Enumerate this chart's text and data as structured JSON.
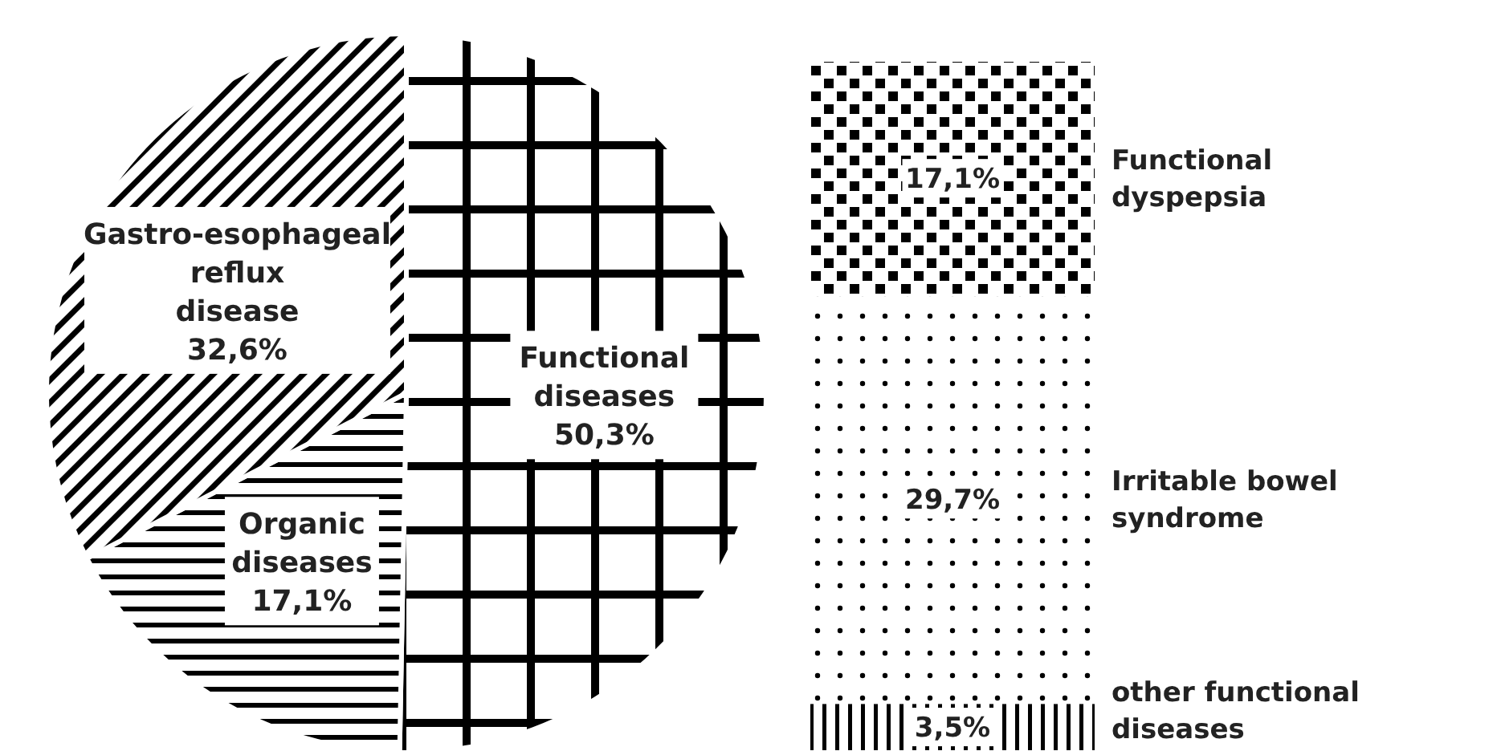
{
  "chart_data": [
    {
      "type": "pie",
      "categories": [
        "Functional diseases",
        "Organic diseases",
        "Gastro-esophageal reflux disease"
      ],
      "values": [
        50.3,
        17.1,
        32.6
      ],
      "value_labels": [
        "50,3%",
        "17,1%",
        "32,6%"
      ],
      "colors": [
        "#ffffff",
        "#ffffff",
        "#ffffff"
      ]
    },
    {
      "type": "bar",
      "stacked": true,
      "categories": [
        null
      ],
      "tick_labels": false,
      "series": [
        {
          "name": "other functional diseases",
          "color": "#ffffff",
          "values": [
            3.5
          ],
          "value_labels": [
            "3,5%"
          ]
        },
        {
          "name": "Irritable bowel syndrome",
          "color": "#ffffff",
          "values": [
            29.7
          ],
          "value_labels": [
            "29,7%"
          ]
        },
        {
          "name": "Functional dyspepsia",
          "color": "#ffffff",
          "values": [
            17.1
          ],
          "value_labels": [
            "17,1%"
          ]
        }
      ]
    }
  ]
}
